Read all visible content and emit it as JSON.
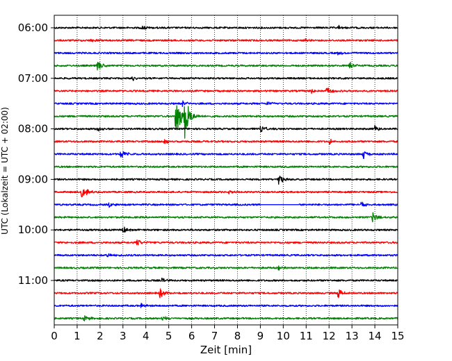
{
  "chart_data": {
    "type": "line",
    "title": "",
    "xlabel": "Zeit  [min]",
    "ylabel": "UTC (Lokalzeit = UTC + 02:00)",
    "xlim": [
      0,
      15
    ],
    "x_ticks": [
      0,
      1,
      2,
      3,
      4,
      5,
      6,
      7,
      8,
      9,
      10,
      11,
      12,
      13,
      14,
      15
    ],
    "y_tick_labels": [
      "06:00",
      "07:00",
      "08:00",
      "09:00",
      "10:00",
      "11:00"
    ],
    "grid": "vertical dotted at each minute",
    "trace_minutes": 15,
    "colors": [
      "#000000",
      "#ff0000",
      "#0000ff",
      "#008000"
    ],
    "rows": [
      {
        "start": "06:00",
        "color": "#000000",
        "events": [
          {
            "t": 3.8,
            "amp": 0.5
          },
          {
            "t": 12.4,
            "amp": 0.4
          }
        ]
      },
      {
        "start": "06:15",
        "color": "#ff0000",
        "events": [
          {
            "t": 1.6,
            "amp": 0.3
          },
          {
            "t": 10.9,
            "amp": 0.4
          }
        ]
      },
      {
        "start": "06:30",
        "color": "#0000ff",
        "events": [
          {
            "t": 12.4,
            "amp": 0.4
          }
        ]
      },
      {
        "start": "06:45",
        "color": "#008000",
        "events": [
          {
            "t": 1.9,
            "amp": 1.0
          },
          {
            "t": 12.9,
            "amp": 1.0
          }
        ]
      },
      {
        "start": "07:00",
        "color": "#000000",
        "events": [
          {
            "t": 3.4,
            "amp": 0.4
          }
        ]
      },
      {
        "start": "07:15",
        "color": "#ff0000",
        "events": [
          {
            "t": 11.2,
            "amp": 0.5
          },
          {
            "t": 11.9,
            "amp": 0.7
          }
        ]
      },
      {
        "start": "07:30",
        "color": "#0000ff",
        "events": [
          {
            "t": 5.6,
            "amp": 0.6
          },
          {
            "t": 9.3,
            "amp": 0.4
          }
        ]
      },
      {
        "start": "07:45",
        "color": "#008000",
        "events": [
          {
            "t": 5.3,
            "amp": 4.5
          },
          {
            "t": 5.7,
            "amp": 4.0
          }
        ]
      },
      {
        "start": "08:00",
        "color": "#000000",
        "events": [
          {
            "t": 1.9,
            "amp": 0.6
          },
          {
            "t": 9.0,
            "amp": 0.9
          },
          {
            "t": 14.0,
            "amp": 0.6
          }
        ]
      },
      {
        "start": "08:15",
        "color": "#ff0000",
        "events": [
          {
            "t": 4.8,
            "amp": 0.6
          },
          {
            "t": 12.0,
            "amp": 0.5
          }
        ]
      },
      {
        "start": "08:30",
        "color": "#0000ff",
        "events": [
          {
            "t": 2.9,
            "amp": 0.9
          },
          {
            "t": 13.5,
            "amp": 0.8
          }
        ]
      },
      {
        "start": "08:45",
        "color": "#008000",
        "events": []
      },
      {
        "start": "09:00",
        "color": "#000000",
        "events": [
          {
            "t": 9.8,
            "amp": 1.2
          }
        ]
      },
      {
        "start": "09:15",
        "color": "#ff0000",
        "events": [
          {
            "t": 1.2,
            "amp": 1.3
          },
          {
            "t": 7.6,
            "amp": 0.4
          }
        ]
      },
      {
        "start": "09:30",
        "color": "#0000ff",
        "events": [
          {
            "t": 2.4,
            "amp": 0.4
          },
          {
            "t": 13.4,
            "amp": 0.5
          }
        ],
        "gap": [
          9.0,
          10.7
        ]
      },
      {
        "start": "09:45",
        "color": "#008000",
        "events": [
          {
            "t": 13.9,
            "amp": 1.0
          }
        ]
      },
      {
        "start": "10:00",
        "color": "#000000",
        "events": [
          {
            "t": 3.0,
            "amp": 0.6
          }
        ]
      },
      {
        "start": "10:15",
        "color": "#ff0000",
        "events": [
          {
            "t": 3.6,
            "amp": 0.7
          }
        ]
      },
      {
        "start": "10:30",
        "color": "#0000ff",
        "events": [
          {
            "t": 2.3,
            "amp": 0.4
          }
        ]
      },
      {
        "start": "10:45",
        "color": "#008000",
        "events": [
          {
            "t": 9.8,
            "amp": 0.4
          }
        ]
      },
      {
        "start": "11:00",
        "color": "#000000",
        "events": [
          {
            "t": 4.7,
            "amp": 0.4
          }
        ]
      },
      {
        "start": "11:15",
        "color": "#ff0000",
        "events": [
          {
            "t": 4.6,
            "amp": 0.9
          },
          {
            "t": 12.4,
            "amp": 1.1
          }
        ]
      },
      {
        "start": "11:30",
        "color": "#0000ff",
        "events": [
          {
            "t": 3.8,
            "amp": 0.4
          }
        ]
      },
      {
        "start": "11:45",
        "color": "#008000",
        "events": [
          {
            "t": 1.3,
            "amp": 0.6
          },
          {
            "t": 4.7,
            "amp": 0.4
          }
        ]
      }
    ]
  }
}
